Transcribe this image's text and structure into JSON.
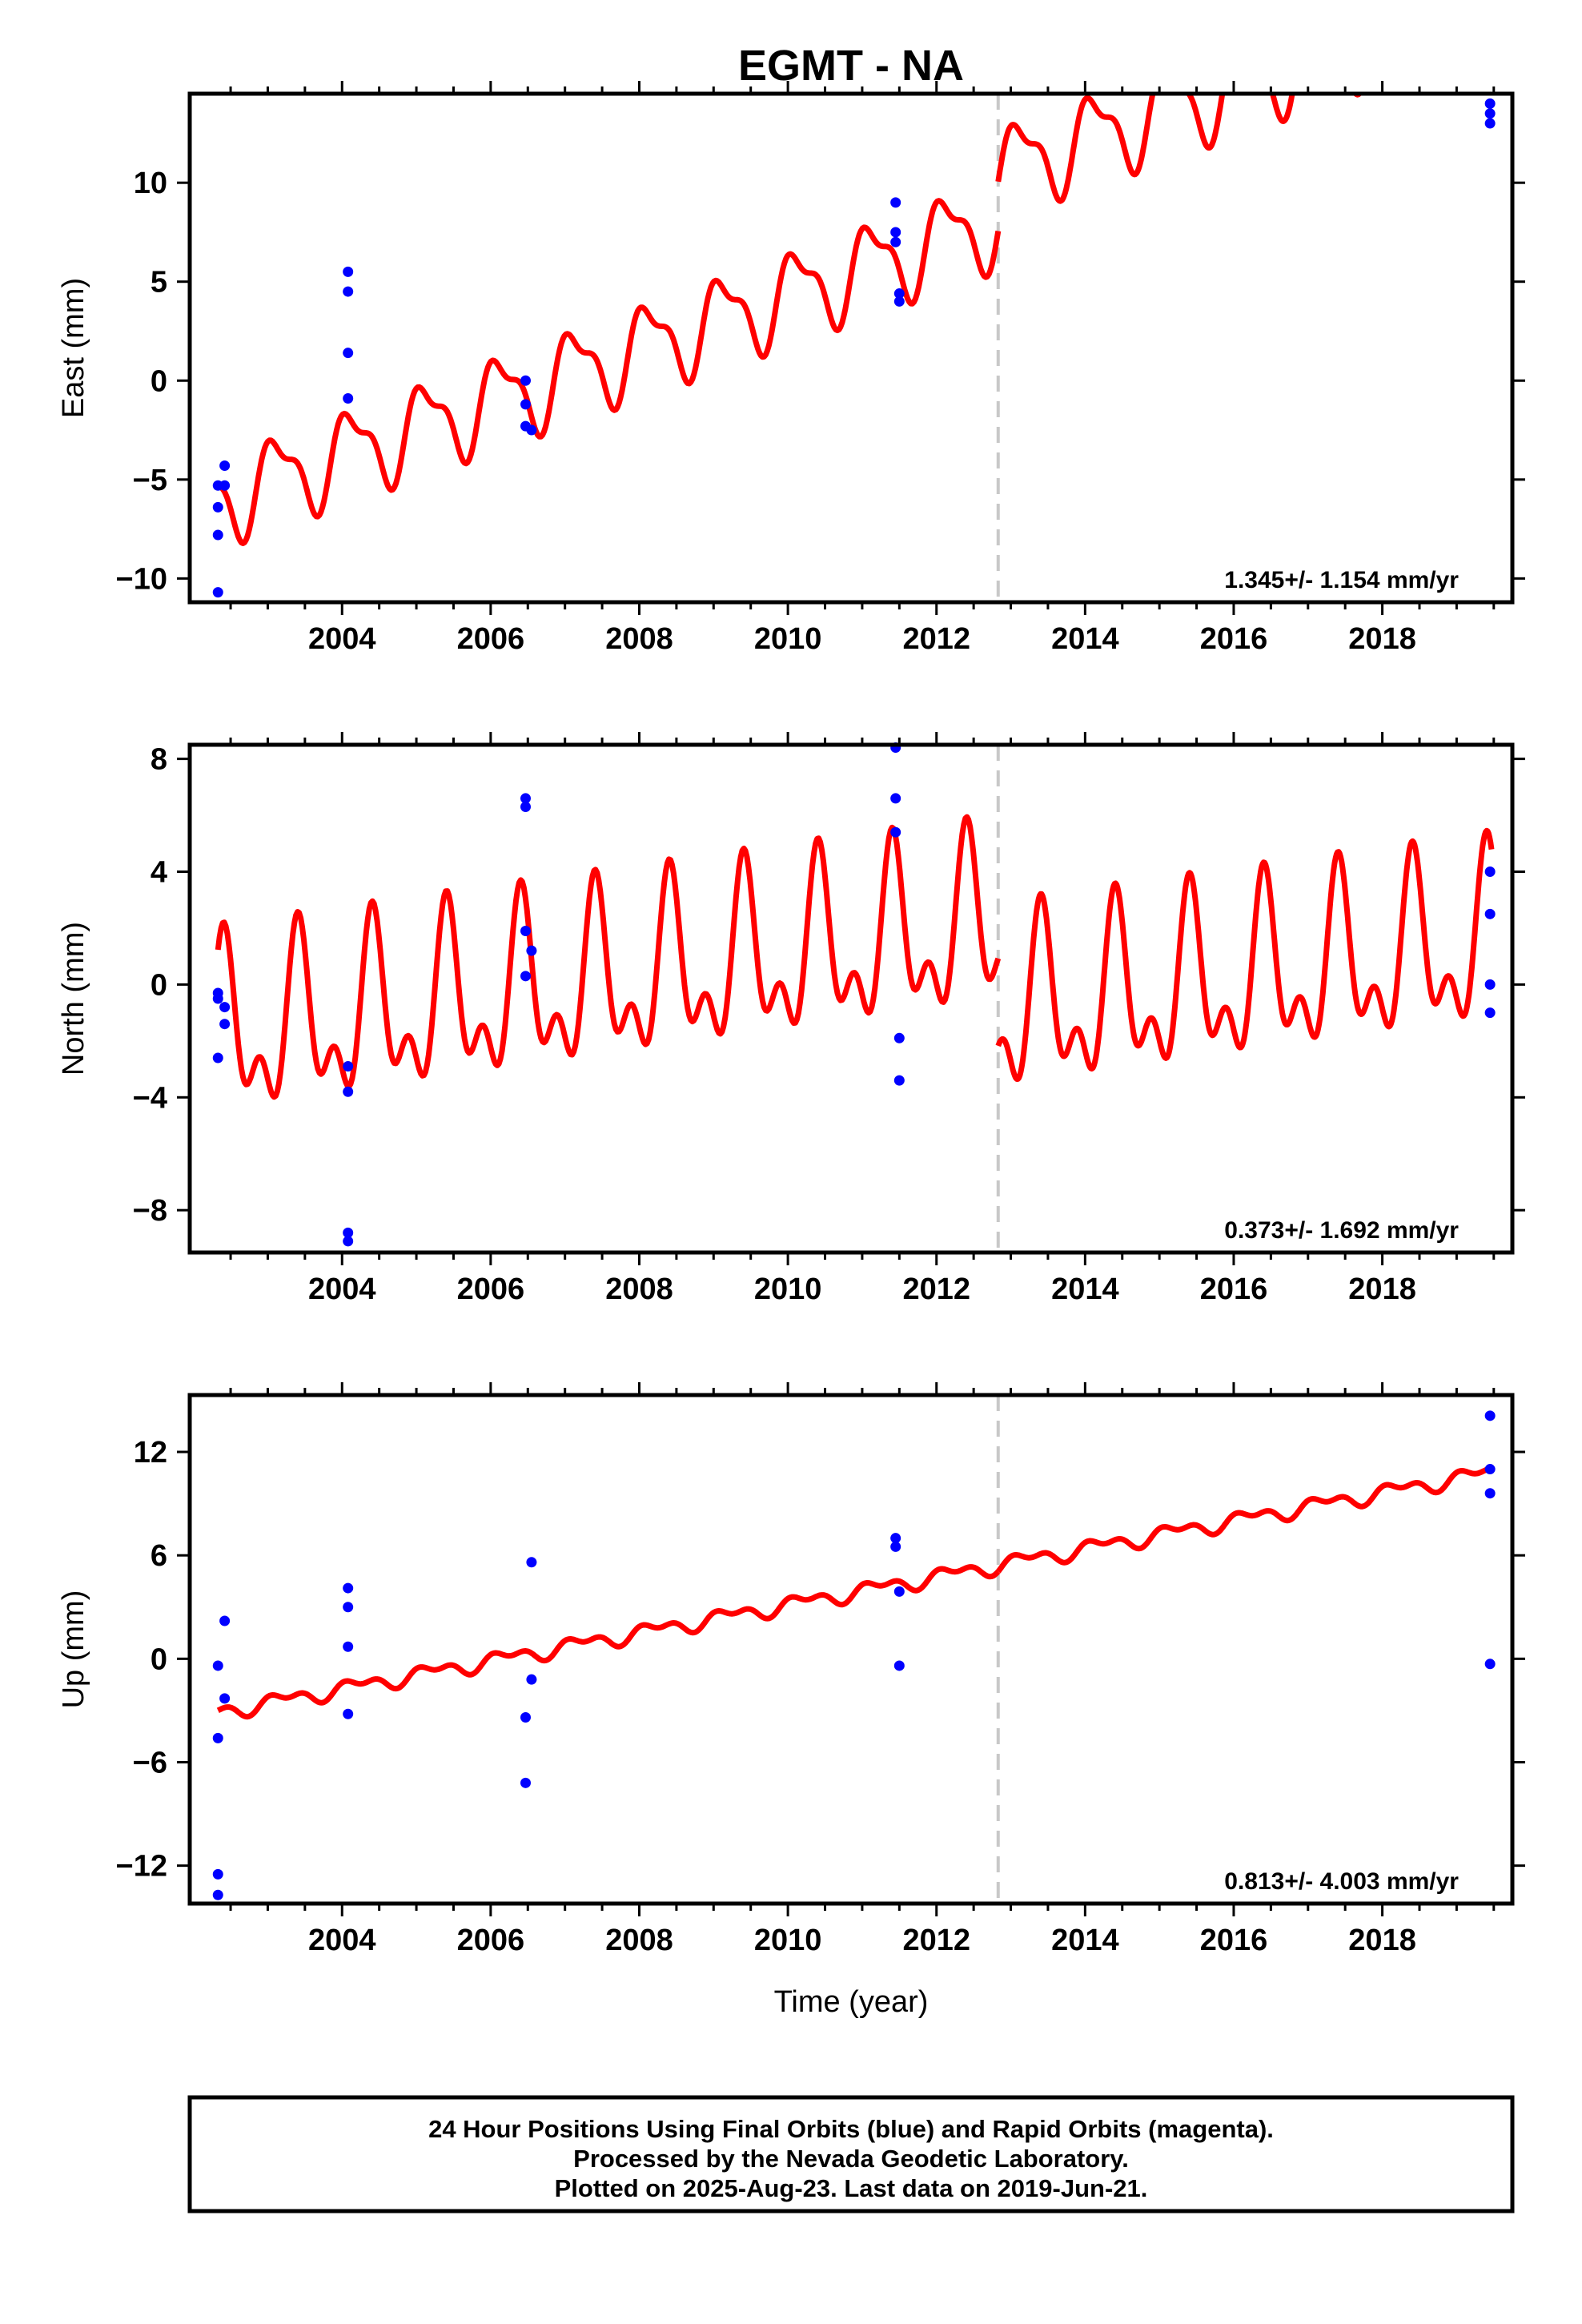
{
  "title": "EGMT - NA",
  "xlabel": "Time (year)",
  "x_ticks": [
    "2004",
    "2006",
    "2008",
    "2010",
    "2012",
    "2014",
    "2016",
    "2018"
  ],
  "footer": [
    "24 Hour Positions Using Final Orbits (blue) and Rapid Orbits (magenta).",
    "Processed by the Nevada Geodetic Laboratory.",
    "Plotted on 2025-Aug-23. Last data on 2019-Jun-21."
  ],
  "colors": {
    "points": "#0000ff",
    "model": "#ff0000",
    "frame": "#000000",
    "break_line": "#c8c8c8"
  },
  "chart_data": [
    {
      "type": "scatter",
      "ylabel": "East (mm)",
      "rate_label": "1.345+/- 1.154 mm/yr",
      "xlim": [
        2001.95,
        2019.75
      ],
      "ylim": [
        -11.2,
        14.5
      ],
      "y_ticks": [
        -10,
        -5,
        0,
        5,
        10
      ],
      "y_tick_labels": [
        "−10",
        "−5",
        "0",
        "5",
        "10"
      ],
      "break_year": 2012.83,
      "points": [
        [
          2002.33,
          -5.3
        ],
        [
          2002.33,
          -6.4
        ],
        [
          2002.33,
          -7.8
        ],
        [
          2002.33,
          -10.7
        ],
        [
          2002.42,
          -4.3
        ],
        [
          2002.42,
          -5.3
        ],
        [
          2004.08,
          5.5
        ],
        [
          2004.08,
          4.5
        ],
        [
          2004.08,
          1.4
        ],
        [
          2004.08,
          -0.9
        ],
        [
          2006.47,
          0.0
        ],
        [
          2006.47,
          -1.2
        ],
        [
          2006.47,
          -2.3
        ],
        [
          2006.55,
          -2.5
        ],
        [
          2011.45,
          9.0
        ],
        [
          2011.45,
          7.5
        ],
        [
          2011.45,
          7.0
        ],
        [
          2011.5,
          4.4
        ],
        [
          2011.5,
          4.0
        ],
        [
          2019.45,
          14.0
        ],
        [
          2019.45,
          13.5
        ],
        [
          2019.45,
          13.0
        ]
      ],
      "model": {
        "start": 2002.33,
        "end": 2019.47,
        "offset_before": -6.0,
        "offset_after": -3.5,
        "rate": 1.345,
        "annual_amp": 2.0,
        "annual_phase_year": 2003.13,
        "semiannual_amp": 0.8,
        "semiannual_phase_year": 2002.95
      }
    },
    {
      "type": "scatter",
      "ylabel": "North (mm)",
      "rate_label": "0.373+/- 1.692 mm/yr",
      "xlim": [
        2001.95,
        2019.75
      ],
      "ylim": [
        -9.5,
        8.5
      ],
      "y_ticks": [
        -8,
        -4,
        0,
        4,
        8
      ],
      "y_tick_labels": [
        "−8",
        "−4",
        "0",
        "4",
        "8"
      ],
      "break_year": 2012.83,
      "points": [
        [
          2002.33,
          -0.3
        ],
        [
          2002.33,
          -0.5
        ],
        [
          2002.33,
          -2.6
        ],
        [
          2002.42,
          -0.8
        ],
        [
          2002.42,
          -1.4
        ],
        [
          2004.08,
          -2.9
        ],
        [
          2004.08,
          -3.8
        ],
        [
          2004.08,
          -8.8
        ],
        [
          2004.08,
          -9.1
        ],
        [
          2006.47,
          6.6
        ],
        [
          2006.47,
          6.3
        ],
        [
          2006.47,
          1.9
        ],
        [
          2006.47,
          0.3
        ],
        [
          2006.55,
          1.2
        ],
        [
          2011.45,
          8.4
        ],
        [
          2011.45,
          6.6
        ],
        [
          2011.45,
          5.4
        ],
        [
          2011.5,
          -1.9
        ],
        [
          2011.5,
          -3.4
        ],
        [
          2019.45,
          4.0
        ],
        [
          2019.45,
          2.5
        ],
        [
          2019.45,
          0.0
        ],
        [
          2019.45,
          -1.0
        ]
      ],
      "model": {
        "start": 2002.33,
        "end": 2019.47,
        "offset_before": -1.9,
        "offset_after": -5.0,
        "rate": 0.373,
        "annual_amp": 2.5,
        "annual_phase_year": 2003.42,
        "semiannual_amp": 1.6,
        "semiannual_phase_year": 2002.9
      }
    },
    {
      "type": "scatter",
      "ylabel": "Up (mm)",
      "rate_label": "0.813+/- 4.003 mm/yr",
      "xlim": [
        2001.95,
        2019.75
      ],
      "ylim": [
        -14.2,
        15.3
      ],
      "y_ticks": [
        -12,
        -6,
        0,
        6,
        12
      ],
      "y_tick_labels": [
        "−12",
        "−6",
        "0",
        "6",
        "12"
      ],
      "break_year": 2012.83,
      "points": [
        [
          2002.33,
          -0.4
        ],
        [
          2002.33,
          -4.6
        ],
        [
          2002.33,
          -12.5
        ],
        [
          2002.33,
          -13.7
        ],
        [
          2002.42,
          2.2
        ],
        [
          2002.42,
          -2.3
        ],
        [
          2004.08,
          4.1
        ],
        [
          2004.08,
          3.0
        ],
        [
          2004.08,
          0.7
        ],
        [
          2004.08,
          -3.2
        ],
        [
          2006.47,
          -3.4
        ],
        [
          2006.47,
          -7.2
        ],
        [
          2006.55,
          5.6
        ],
        [
          2006.55,
          -1.2
        ],
        [
          2011.45,
          7.0
        ],
        [
          2011.45,
          6.5
        ],
        [
          2011.5,
          3.9
        ],
        [
          2011.5,
          -0.4
        ],
        [
          2019.45,
          14.1
        ],
        [
          2019.45,
          11.0
        ],
        [
          2019.45,
          9.6
        ],
        [
          2019.45,
          -0.3
        ]
      ],
      "model": {
        "start": 2002.33,
        "end": 2019.47,
        "offset_before": -3.1,
        "offset_after": -3.1,
        "rate": 0.813,
        "annual_amp": 0.35,
        "annual_phase_year": 2003.2,
        "semiannual_amp": 0.25,
        "semiannual_phase_year": 2003.0
      }
    }
  ]
}
